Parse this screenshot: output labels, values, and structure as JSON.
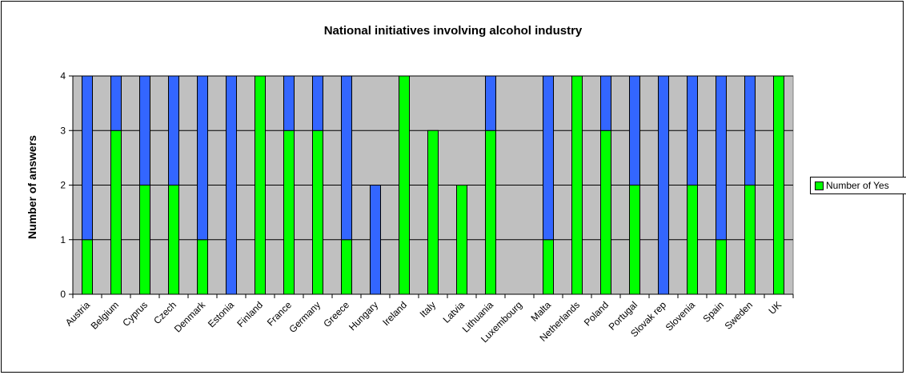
{
  "chart_data": {
    "type": "bar",
    "stacked": true,
    "title": "National initiatives involving alcohol industry",
    "ylabel": "Number of answers",
    "xlabel": "",
    "ylim": [
      0,
      4
    ],
    "yticks": [
      0,
      1,
      2,
      3,
      4
    ],
    "grid": true,
    "legend_position": "right",
    "categories": [
      "Austria",
      "Belgium",
      "Cyprus",
      "Czech",
      "Denmark",
      "Estonia",
      "Finland",
      "France",
      "Germany",
      "Greece",
      "Hungary",
      "Ireland",
      "Italy",
      "Latvia",
      "Lithuania",
      "Luxembourg",
      "Malta",
      "Netherlands",
      "Poland",
      "Portugal",
      "Slovak rep",
      "Slovenia",
      "Spain",
      "Sweden",
      "UK"
    ],
    "series": [
      {
        "name": "Number of Yes",
        "color": "#00ff00",
        "values": [
          1,
          3,
          2,
          2,
          1,
          0,
          4,
          3,
          3,
          1,
          0,
          4,
          3,
          2,
          3,
          0,
          1,
          4,
          3,
          2,
          0,
          2,
          1,
          2,
          4
        ]
      },
      {
        "color": "#3366ff",
        "values": [
          3,
          1,
          2,
          2,
          3,
          4,
          0,
          1,
          1,
          3,
          2,
          0,
          0,
          0,
          1,
          0,
          3,
          0,
          1,
          2,
          4,
          2,
          3,
          2,
          0
        ]
      }
    ],
    "plot_background": "#c0c0c0"
  },
  "legend": {
    "label": "Number of Yes"
  }
}
